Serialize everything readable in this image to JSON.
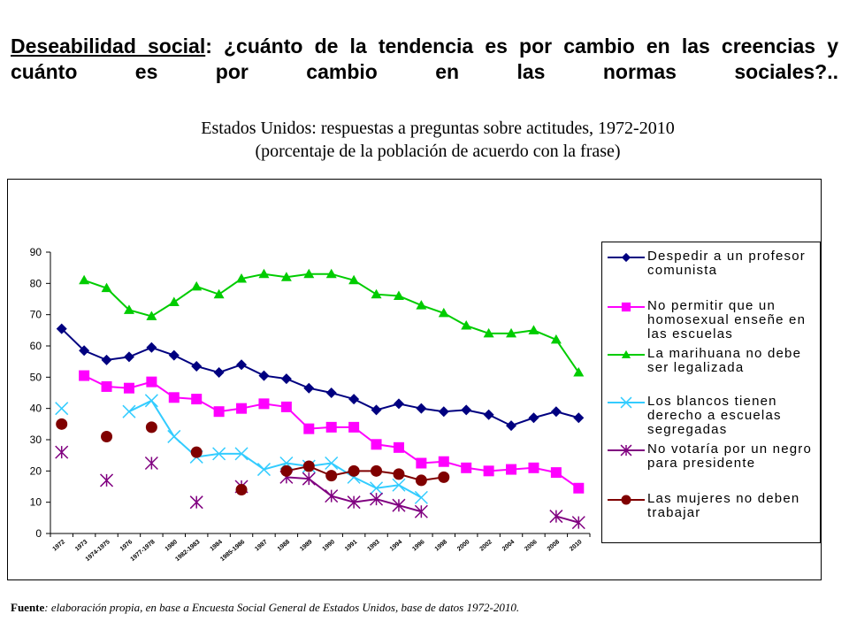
{
  "slide": {
    "title_part1": "Deseabilidad social",
    "title_part2": ": ¿cuánto de la tendencia es por cambio en las creencias y cuánto es por cambio en las normas sociales?..",
    "subtitle_line1": "Estados Unidos: respuestas a preguntas sobre actitudes, 1972-2010",
    "subtitle_line2": "(porcentaje de la población de acuerdo con la frase)",
    "source_label": "Fuente",
    "source_text": ": elaboración propia, en base a Encuesta Social General de Estados Unidos, base de datos 1972-2010."
  },
  "chart_data": {
    "type": "line",
    "categories": [
      "1972",
      "1973",
      "1974-1975",
      "1976",
      "1977-1978",
      "1980",
      "1982-1983",
      "1984",
      "1985-1986",
      "1987",
      "1988",
      "1989",
      "1990",
      "1991",
      "1993",
      "1994",
      "1996",
      "1998",
      "2000",
      "2002",
      "2004",
      "2006",
      "2008",
      "2010"
    ],
    "ylim": [
      0,
      90
    ],
    "yticks": [
      0,
      10,
      20,
      30,
      40,
      50,
      60,
      70,
      80,
      90
    ],
    "grid": false,
    "legend_position": "right",
    "series": [
      {
        "name": "Despedir a un profesor comunista",
        "color": "#000080",
        "marker": "diamond",
        "values": [
          65.5,
          58.5,
          55.5,
          56.5,
          59.5,
          57,
          53.5,
          51.5,
          54,
          50.5,
          49.5,
          46.5,
          45,
          43,
          39.5,
          41.5,
          40,
          39,
          39.5,
          38,
          34.5,
          37,
          39,
          37
        ]
      },
      {
        "name": "No permitir que un homosexual enseñe en las escuelas",
        "color": "#ff00ff",
        "marker": "square",
        "values": [
          null,
          50.5,
          47,
          46.5,
          48.5,
          43.5,
          43,
          39,
          40,
          41.5,
          40.5,
          33.5,
          34,
          34,
          28.5,
          27.5,
          22.5,
          23,
          21,
          20,
          20.5,
          21,
          19.5,
          14.5
        ]
      },
      {
        "name": "La marihuana no debe ser legalizada",
        "color": "#00cc00",
        "marker": "triangle",
        "values": [
          null,
          81,
          78.5,
          71.5,
          69.5,
          74,
          79,
          76.5,
          81.5,
          83,
          82,
          83,
          83,
          81,
          76.5,
          76,
          73,
          70.5,
          66.5,
          64,
          64,
          65,
          62,
          51.5
        ]
      },
      {
        "name": "Los blancos tienen derecho a escuelas segregadas",
        "color": "#33ccff",
        "marker": "x",
        "values": [
          40,
          null,
          null,
          39,
          42.5,
          31,
          24.5,
          25.5,
          25.5,
          20.5,
          22.5,
          21.5,
          22.5,
          18,
          14.5,
          15.5,
          11.5,
          null,
          null,
          null,
          null,
          null,
          null,
          null
        ]
      },
      {
        "name": "No votaría por un negro para presidente",
        "color": "#800080",
        "marker": "star",
        "values": [
          26,
          null,
          17,
          null,
          22.5,
          null,
          10,
          null,
          15,
          null,
          18,
          17.5,
          12,
          10,
          11,
          9,
          7,
          null,
          null,
          null,
          null,
          null,
          5.5,
          3.5
        ]
      },
      {
        "name": "Las mujeres no deben trabajar",
        "color": "#800000",
        "marker": "circle",
        "values": [
          35,
          null,
          31,
          null,
          34,
          null,
          26,
          null,
          14,
          null,
          20,
          21.5,
          18.5,
          20,
          20,
          19,
          17,
          18,
          null,
          null,
          null,
          null,
          null,
          null
        ]
      }
    ]
  }
}
